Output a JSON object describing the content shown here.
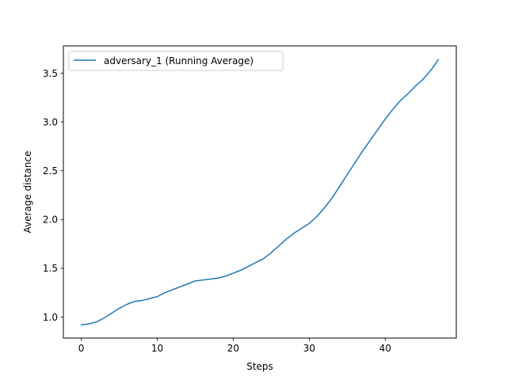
{
  "chart_data": {
    "type": "line",
    "xlabel": "Steps",
    "ylabel": "Average distance",
    "xlim": [
      -2.35,
      49.35
    ],
    "ylim": [
      0.785,
      3.78
    ],
    "xticks": [
      0,
      10,
      20,
      30,
      40
    ],
    "yticks": [
      1.0,
      1.5,
      2.0,
      2.5,
      3.0,
      3.5
    ],
    "ytick_labels": [
      "1.0",
      "1.5",
      "2.0",
      "2.5",
      "3.0",
      "3.5"
    ],
    "grid": false,
    "legend_position": "top-left",
    "series": [
      {
        "name": "adversary_1 (Running Average)",
        "color": "#1f77b4",
        "x": [
          0,
          1,
          2,
          3,
          4,
          5,
          6,
          7,
          8,
          9,
          10,
          11,
          12,
          13,
          14,
          15,
          16,
          17,
          18,
          19,
          20,
          21,
          22,
          23,
          24,
          25,
          26,
          27,
          28,
          29,
          30,
          31,
          32,
          33,
          34,
          35,
          36,
          37,
          38,
          39,
          40,
          41,
          42,
          43,
          44,
          45,
          46,
          47
        ],
        "y": [
          0.92,
          0.93,
          0.95,
          0.99,
          1.04,
          1.09,
          1.13,
          1.16,
          1.17,
          1.19,
          1.21,
          1.25,
          1.28,
          1.31,
          1.34,
          1.37,
          1.38,
          1.39,
          1.4,
          1.42,
          1.45,
          1.48,
          1.52,
          1.56,
          1.6,
          1.66,
          1.73,
          1.8,
          1.86,
          1.91,
          1.96,
          2.03,
          2.12,
          2.22,
          2.34,
          2.46,
          2.58,
          2.7,
          2.81,
          2.92,
          3.03,
          3.13,
          3.22,
          3.29,
          3.37,
          3.44,
          3.53,
          3.64
        ]
      }
    ]
  }
}
